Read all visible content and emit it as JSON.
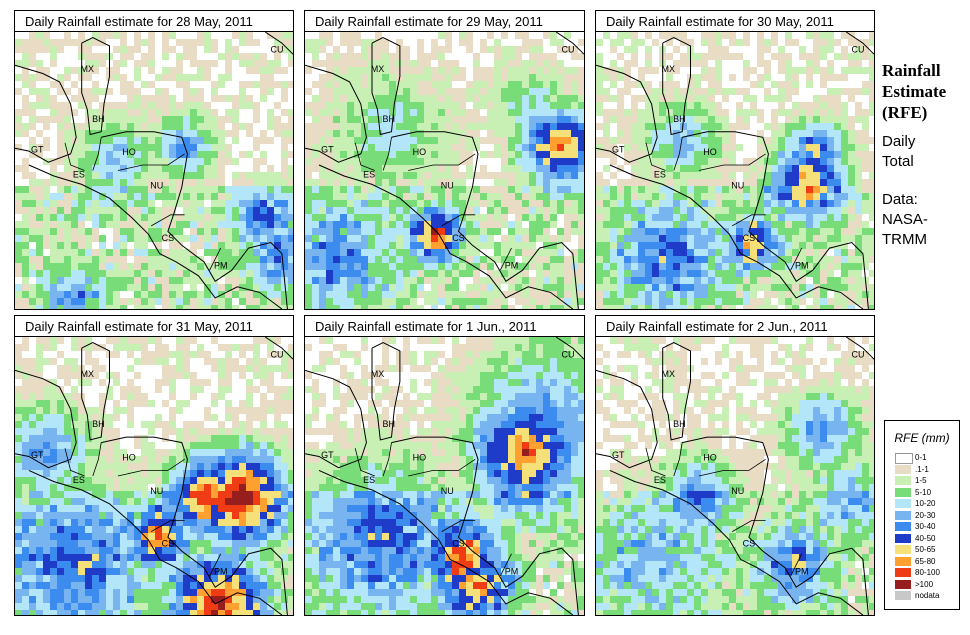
{
  "panels": [
    {
      "title": "Daily Rainfall estimate for  28 May, 2011"
    },
    {
      "title": "Daily Rainfall estimate for  29 May, 2011"
    },
    {
      "title": "Daily Rainfall estimate for  30 May, 2011"
    },
    {
      "title": "Daily Rainfall estimate for  31 May, 2011"
    },
    {
      "title": "Daily Rainfall estimate for  1 Jun., 2011"
    },
    {
      "title": "Daily Rainfall estimate for  2 Jun., 2011"
    }
  ],
  "country_labels": [
    "MX",
    "BH",
    "GT",
    "HO",
    "ES",
    "NU",
    "CS",
    "PM",
    "CU"
  ],
  "side": {
    "title_line1": "Rainfall",
    "title_line2": "Estimate",
    "title_line3": "(RFE)",
    "daily": "Daily",
    "total": "Total",
    "data_label": "Data:",
    "source_line1": "NASA-",
    "source_line2": "TRMM"
  },
  "legend": {
    "title": "RFE (mm)",
    "items": [
      {
        "label": "0-1",
        "color": "#ffffff"
      },
      {
        "label": ".1-1",
        "color": "#e8dcc4"
      },
      {
        "label": "1-5",
        "color": "#c8f0b4"
      },
      {
        "label": "5-10",
        "color": "#78dc78"
      },
      {
        "label": "10-20",
        "color": "#b4e6fa"
      },
      {
        "label": "20-30",
        "color": "#78b4f0"
      },
      {
        "label": "30-40",
        "color": "#3c8cf0"
      },
      {
        "label": "40-50",
        "color": "#1e3cc8"
      },
      {
        "label": "50-65",
        "color": "#f5e07a"
      },
      {
        "label": "65-80",
        "color": "#ffa030"
      },
      {
        "label": "80-100",
        "color": "#f03c14"
      },
      {
        "label": ">100",
        "color": "#961e1e"
      },
      {
        "label": "nodata",
        "color": "#c8c8c8"
      }
    ]
  }
}
